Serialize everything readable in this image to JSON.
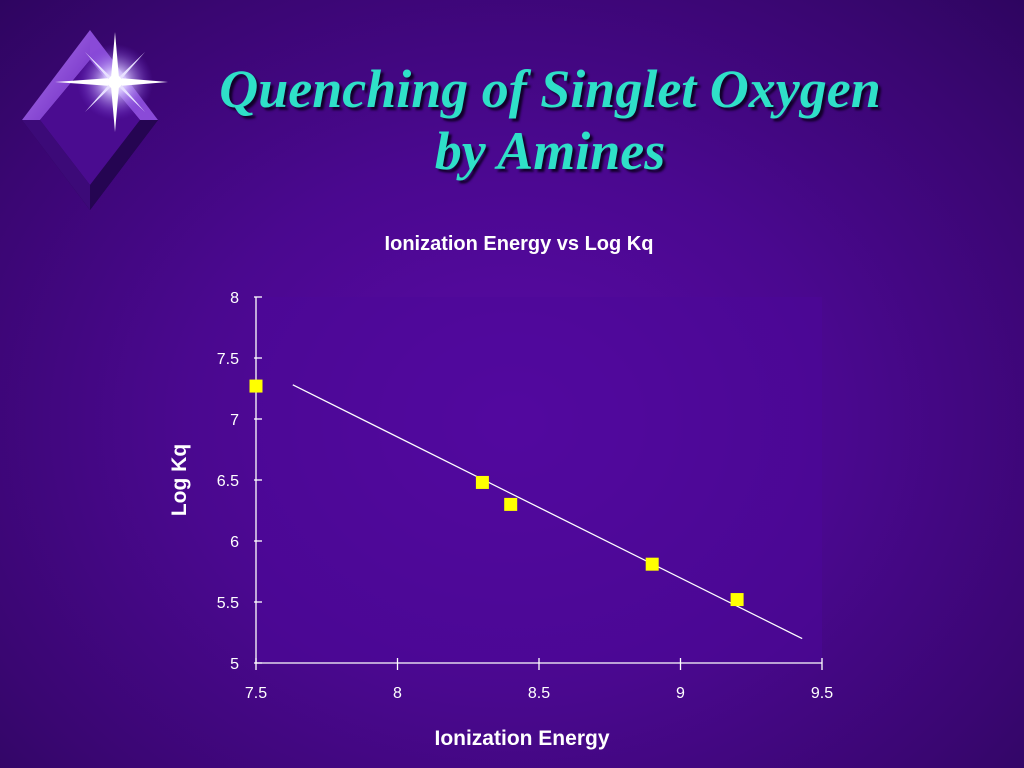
{
  "slide": {
    "title_line1": "Quenching of Singlet Oxygen",
    "title_line2": "by Amines"
  },
  "colors": {
    "title": "#2fe0c8",
    "marker": "#ffff00",
    "trendline": "#ffffff",
    "plot_area": "#4d0899"
  },
  "icons": {
    "logo": "diamond-star-logo-icon"
  },
  "chart_data": {
    "type": "scatter",
    "title": "Ionization Energy vs Log Kq",
    "xlabel": "Ionization Energy",
    "ylabel": "Log Kq",
    "xlim": [
      7.5,
      9.5
    ],
    "ylim": [
      5,
      8
    ],
    "xticks": [
      "7.5",
      "8",
      "8.5",
      "9",
      "9.5"
    ],
    "yticks": [
      "5",
      "5.5",
      "6",
      "6.5",
      "7",
      "7.5",
      "8"
    ],
    "grid": false,
    "legend": "none",
    "series": [
      {
        "marker": "square",
        "points": [
          {
            "x": 7.5,
            "y": 7.27
          },
          {
            "x": 8.3,
            "y": 6.48
          },
          {
            "x": 8.4,
            "y": 6.3
          },
          {
            "x": 8.9,
            "y": 5.81
          },
          {
            "x": 9.2,
            "y": 5.52
          }
        ]
      }
    ],
    "trendline": {
      "type": "linear",
      "from": {
        "x": 7.63,
        "y": 7.28
      },
      "to": {
        "x": 9.43,
        "y": 5.2
      }
    }
  }
}
